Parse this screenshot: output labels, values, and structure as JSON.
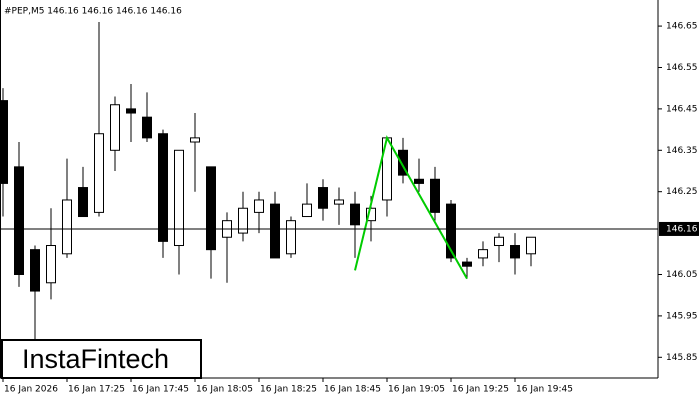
{
  "chart_data": {
    "type": "candlestick",
    "header": "#PEP,M5  146.16 146.16 146.16 146.16",
    "watermark": "InstaFintech",
    "categories": [
      "16 Jan 2026",
      null,
      null,
      null,
      "16 Jan 17:25",
      null,
      null,
      null,
      "16 Jan 17:45",
      null,
      null,
      null,
      "16 Jan 18:05",
      null,
      null,
      null,
      "16 Jan 18:25",
      null,
      null,
      null,
      "16 Jan 18:45",
      null,
      null,
      null,
      "16 Jan 19:05",
      null,
      null,
      null,
      "16 Jan 19:25",
      null,
      null,
      null,
      "16 Jan 19:45",
      null
    ],
    "open": [
      146.47,
      146.31,
      146.11,
      146.03,
      146.1,
      146.26,
      146.2,
      146.35,
      146.45,
      146.43,
      146.39,
      146.12,
      146.37,
      146.31,
      146.14,
      146.15,
      146.2,
      146.22,
      146.1,
      146.19,
      146.26,
      146.22,
      146.22,
      146.18,
      146.23,
      146.35,
      146.28,
      146.28,
      146.22,
      146.08,
      146.09,
      146.12,
      146.12,
      146.1
    ],
    "high": [
      146.5,
      146.37,
      146.12,
      146.21,
      146.33,
      146.31,
      146.66,
      146.48,
      146.51,
      146.49,
      146.4,
      146.35,
      146.44,
      146.31,
      146.2,
      146.25,
      146.25,
      146.25,
      146.19,
      146.27,
      146.28,
      146.26,
      146.25,
      146.24,
      146.38,
      146.38,
      146.33,
      146.31,
      146.23,
      146.09,
      146.13,
      146.15,
      146.15,
      146.14
    ],
    "low": [
      146.19,
      146.02,
      145.89,
      145.99,
      146.09,
      146.19,
      146.19,
      146.3,
      146.37,
      146.37,
      146.09,
      146.05,
      146.25,
      146.04,
      146.03,
      146.13,
      146.15,
      146.09,
      146.09,
      146.19,
      146.18,
      146.17,
      146.09,
      146.13,
      146.19,
      146.27,
      146.25,
      146.18,
      146.08,
      146.04,
      146.07,
      146.08,
      146.05,
      146.07
    ],
    "close": [
      146.27,
      146.05,
      146.01,
      146.12,
      146.23,
      146.19,
      146.39,
      146.46,
      146.44,
      146.38,
      146.13,
      146.35,
      146.38,
      146.11,
      146.18,
      146.21,
      146.23,
      146.09,
      146.18,
      146.22,
      146.21,
      146.23,
      146.17,
      146.21,
      146.38,
      146.29,
      146.27,
      146.2,
      146.09,
      146.07,
      146.11,
      146.14,
      146.09,
      146.14
    ],
    "up_color": "#ffffff",
    "down_color": "#000000",
    "pattern": {
      "color": "#00cc00",
      "x": [
        22,
        24,
        29
      ],
      "values": [
        146.06,
        146.38,
        146.04
      ]
    },
    "last_price": 146.16,
    "ylim": [
      145.8,
      146.713
    ],
    "yticks": [
      146.65,
      146.55,
      146.45,
      146.35,
      146.25,
      146.05,
      145.95,
      145.85
    ]
  }
}
